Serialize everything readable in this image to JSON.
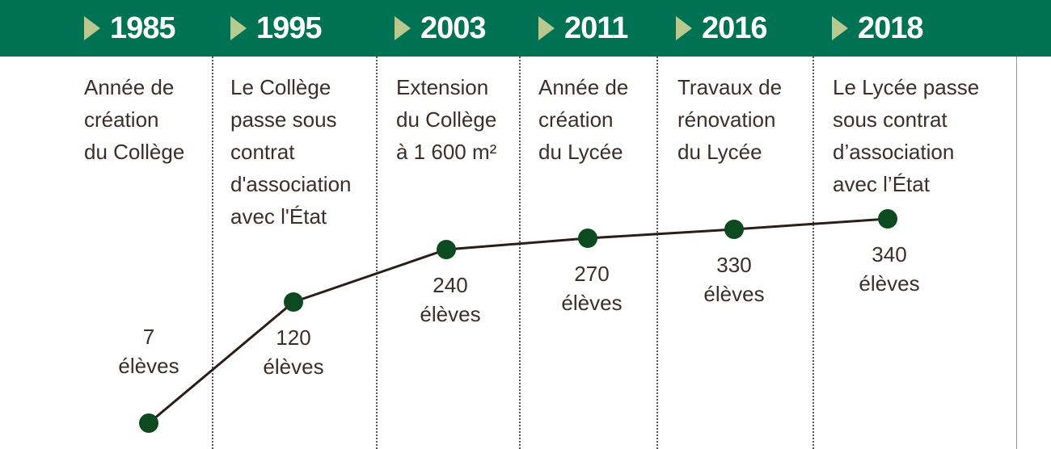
{
  "chart_data": {
    "type": "line",
    "x": [
      "1985",
      "1995",
      "2003",
      "2011",
      "2016",
      "2018"
    ],
    "values": [
      7,
      120,
      240,
      270,
      330,
      340
    ],
    "events": [
      [
        "Année de",
        "création",
        "du Collège"
      ],
      [
        "Le Collège",
        "passe sous",
        "contrat",
        "d'association",
        "avec l'État"
      ],
      [
        "Extension",
        "du Collège",
        "à 1 600 m²"
      ],
      [
        "Année de",
        "création",
        "du Lycée"
      ],
      [
        "Travaux de",
        "rénovation",
        "du Lycée"
      ],
      [
        "Le Lycée passe",
        "sous contrat",
        "d’association",
        "avec l’État"
      ]
    ],
    "count_labels": [
      [
        "7",
        "élèves"
      ],
      [
        "120",
        "élèves"
      ],
      [
        "240",
        "élèves"
      ],
      [
        "270",
        "élèves"
      ],
      [
        "330",
        "élèves"
      ],
      [
        "340",
        "élèves"
      ]
    ],
    "colors": {
      "header": "#007254",
      "arrow": "#b7c98e",
      "marker": "#0d4a1f",
      "line": "#2b1d17"
    }
  }
}
